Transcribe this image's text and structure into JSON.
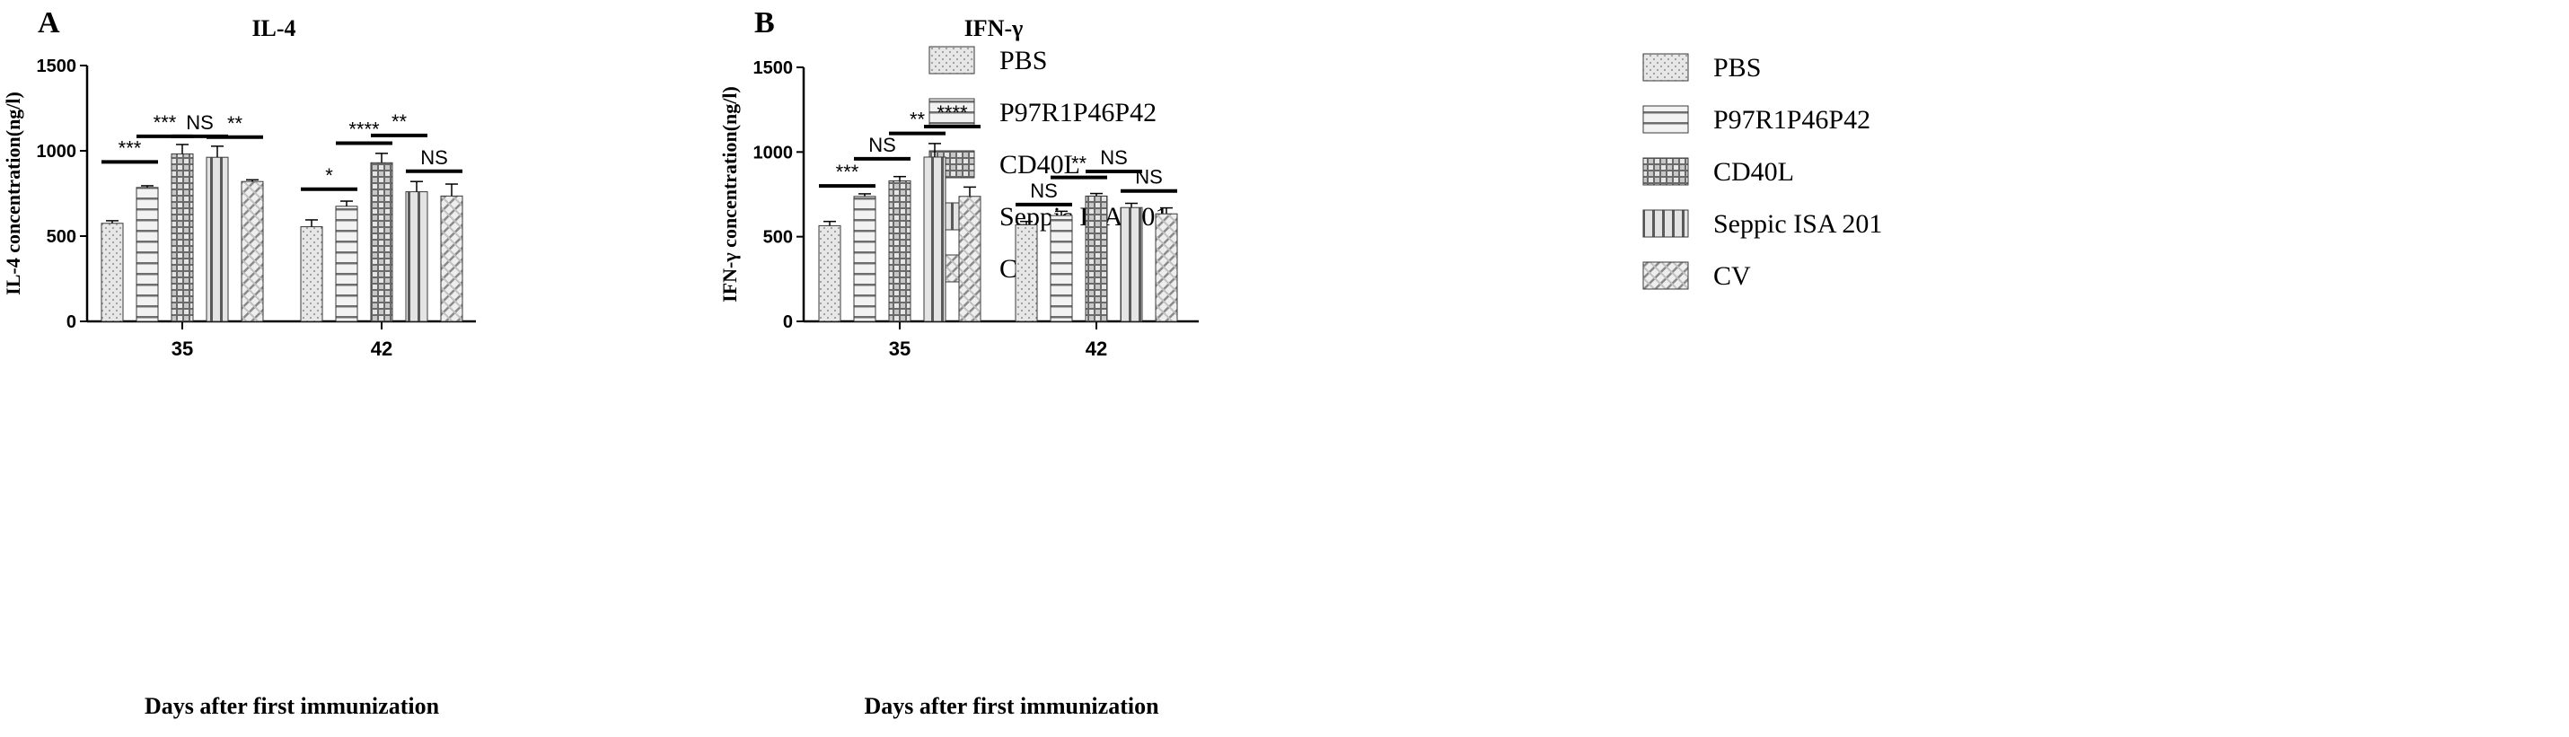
{
  "chart_data": [
    {
      "type": "bar",
      "panel_label": "A",
      "title": "IL-4",
      "ylabel": "IL-4 concentration(ng/l)",
      "xlabel": "Days after first immunization",
      "categories": [
        "35",
        "42"
      ],
      "ylim": [
        0,
        1500
      ],
      "yticks": [
        0,
        500,
        1000,
        1500
      ],
      "grid": false,
      "legend_position": "right",
      "series": [
        {
          "name": "PBS",
          "pattern": "dots",
          "values": [
            575,
            555
          ],
          "errors": [
            15,
            40
          ]
        },
        {
          "name": "P97R1P46P42",
          "pattern": "hstripes",
          "values": [
            785,
            675
          ],
          "errors": [
            10,
            30
          ]
        },
        {
          "name": "CD40L",
          "pattern": "checker",
          "values": [
            982,
            930
          ],
          "errors": [
            55,
            55
          ]
        },
        {
          "name": "Seppic ISA 201",
          "pattern": "vstripes",
          "values": [
            962,
            760
          ],
          "errors": [
            65,
            60
          ]
        },
        {
          "name": "CV",
          "pattern": "diag",
          "values": [
            820,
            735
          ],
          "errors": [
            10,
            70
          ]
        }
      ],
      "significance": [
        {
          "label": "***",
          "cat": 0,
          "from": 0,
          "to": 1,
          "y": 935
        },
        {
          "label": "***",
          "cat": 0,
          "from": 1,
          "to": 2,
          "y": 1085
        },
        {
          "label": "NS",
          "cat": 0,
          "from": 2,
          "to": 3,
          "y": 1085
        },
        {
          "label": "**",
          "cat": 0,
          "from": 3,
          "to": 4,
          "y": 1080
        },
        {
          "label": "*",
          "cat": 1,
          "from": 0,
          "to": 1,
          "y": 775
        },
        {
          "label": "****",
          "cat": 1,
          "from": 1,
          "to": 2,
          "y": 1045
        },
        {
          "label": "**",
          "cat": 1,
          "from": 2,
          "to": 3,
          "y": 1090
        },
        {
          "label": "NS",
          "cat": 1,
          "from": 3,
          "to": 4,
          "y": 880
        }
      ]
    },
    {
      "type": "bar",
      "panel_label": "B",
      "title": "IFN-γ",
      "ylabel": "IFN-γ concentration(ng/l)",
      "xlabel": "Days after first immunization",
      "categories": [
        "35",
        "42"
      ],
      "ylim": [
        0,
        1500
      ],
      "yticks": [
        0,
        500,
        1000,
        1500
      ],
      "grid": false,
      "legend_position": "right",
      "series": [
        {
          "name": "PBS",
          "pattern": "dots",
          "values": [
            565,
            570
          ],
          "errors": [
            25,
            20
          ]
        },
        {
          "name": "P97R1P46P42",
          "pattern": "hstripes",
          "values": [
            738,
            625
          ],
          "errors": [
            15,
            25
          ]
        },
        {
          "name": "CD40L",
          "pattern": "checker",
          "values": [
            830,
            740
          ],
          "errors": [
            25,
            15
          ]
        },
        {
          "name": "Seppic ISA 201",
          "pattern": "vstripes",
          "values": [
            970,
            672
          ],
          "errors": [
            80,
            25
          ]
        },
        {
          "name": "CV",
          "pattern": "diag",
          "values": [
            738,
            635
          ],
          "errors": [
            55,
            35
          ]
        }
      ],
      "significance": [
        {
          "label": "***",
          "cat": 0,
          "from": 0,
          "to": 1,
          "y": 800
        },
        {
          "label": "NS",
          "cat": 0,
          "from": 1,
          "to": 2,
          "y": 960
        },
        {
          "label": "**",
          "cat": 0,
          "from": 2,
          "to": 3,
          "y": 1110
        },
        {
          "label": "****",
          "cat": 0,
          "from": 3,
          "to": 4,
          "y": 1150
        },
        {
          "label": "NS",
          "cat": 1,
          "from": 0,
          "to": 1,
          "y": 690
        },
        {
          "label": "**",
          "cat": 1,
          "from": 1,
          "to": 2,
          "y": 850
        },
        {
          "label": "NS",
          "cat": 1,
          "from": 2,
          "to": 3,
          "y": 885
        },
        {
          "label": "NS",
          "cat": 1,
          "from": 3,
          "to": 4,
          "y": 770
        }
      ]
    }
  ]
}
